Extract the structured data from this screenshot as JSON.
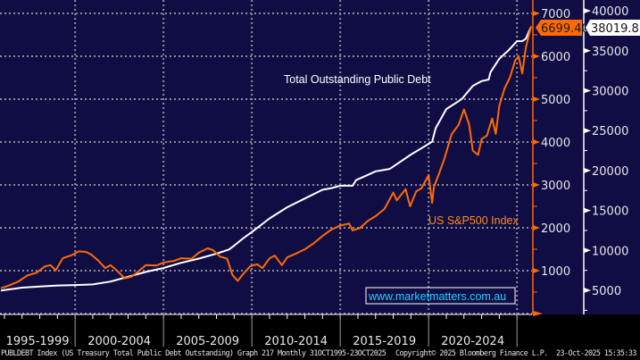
{
  "chart_data": {
    "type": "line",
    "title": "",
    "x_range": [
      "1995-10",
      "2025-10"
    ],
    "x_tick_labels": [
      "1995-1999",
      "2000-2004",
      "2005-2009",
      "2010-2014",
      "2015-2019",
      "2020-2024"
    ],
    "left_axis": {
      "series": "US S&P500 Index",
      "color": "#ff6a00",
      "ylim": [
        0,
        7000
      ],
      "ticks": [
        1000,
        2000,
        3000,
        4000,
        5000,
        6000,
        7000
      ],
      "last_value_label": "6699.40"
    },
    "right_axis": {
      "series": "Total Outstanding Public Debt",
      "color": "#ffffff",
      "ylim": [
        0,
        40000
      ],
      "ticks": [
        5000,
        10000,
        15000,
        20000,
        25000,
        30000,
        35000,
        40000
      ],
      "last_value_label": "38019.81"
    },
    "grid": true,
    "annotations": [
      {
        "text": "Total Outstanding Public Debt",
        "color": "#ffffff"
      },
      {
        "text": "US S&P500 Index",
        "color": "#ff8c1a"
      }
    ],
    "series": [
      {
        "name": "US S&P500 Index",
        "axis": "left",
        "x": [
          1995.8,
          1996.3,
          1996.8,
          1997.3,
          1997.8,
          1998.3,
          1998.6,
          1998.9,
          1999.3,
          1999.8,
          2000.2,
          2000.6,
          2000.9,
          2001.3,
          2001.7,
          2002.0,
          2002.5,
          2002.8,
          2003.2,
          2003.6,
          2004.0,
          2004.6,
          2005.0,
          2005.6,
          2006.0,
          2006.6,
          2007.0,
          2007.5,
          2007.8,
          2008.2,
          2008.6,
          2008.9,
          2009.2,
          2009.5,
          2009.9,
          2010.3,
          2010.6,
          2011.0,
          2011.3,
          2011.7,
          2012.0,
          2012.5,
          2013.0,
          2013.5,
          2014.0,
          2014.5,
          2015.0,
          2015.5,
          2015.7,
          2016.1,
          2016.6,
          2017.0,
          2017.5,
          2018.0,
          2018.2,
          2018.7,
          2018.95,
          2019.3,
          2019.6,
          2020.0,
          2020.2,
          2020.3,
          2020.6,
          2020.9,
          2021.3,
          2021.7,
          2022.0,
          2022.3,
          2022.5,
          2022.8,
          2023.0,
          2023.3,
          2023.6,
          2023.8,
          2024.0,
          2024.3,
          2024.6,
          2024.9,
          2025.1,
          2025.3,
          2025.5,
          2025.8
        ],
        "values": [
          590,
          660,
          750,
          890,
          950,
          1100,
          1130,
          1010,
          1290,
          1360,
          1450,
          1440,
          1380,
          1240,
          1060,
          1130,
          950,
          820,
          860,
          990,
          1130,
          1120,
          1190,
          1230,
          1290,
          1280,
          1420,
          1520,
          1480,
          1330,
          1280,
          900,
          760,
          920,
          1100,
          1150,
          1060,
          1290,
          1350,
          1130,
          1310,
          1400,
          1500,
          1640,
          1810,
          1960,
          2050,
          2100,
          1940,
          1990,
          2170,
          2270,
          2440,
          2820,
          2640,
          2900,
          2500,
          2850,
          2920,
          3230,
          2580,
          2950,
          3270,
          3620,
          4180,
          4400,
          4760,
          4400,
          3800,
          3700,
          4070,
          4150,
          4550,
          4190,
          4850,
          5250,
          5500,
          5900,
          6000,
          5600,
          6200,
          6699.4
        ]
      },
      {
        "name": "Total Outstanding Public Debt",
        "axis": "right",
        "x": [
          1995.8,
          1997.0,
          1998.0,
          1999.0,
          2000.0,
          2001.0,
          2002.0,
          2003.0,
          2004.0,
          2005.0,
          2006.0,
          2007.0,
          2008.0,
          2008.7,
          2009.0,
          2009.5,
          2010.0,
          2011.0,
          2012.0,
          2013.0,
          2014.0,
          2014.5,
          2015.0,
          2015.7,
          2015.9,
          2016.5,
          2017.0,
          2017.8,
          2018.0,
          2019.0,
          2019.9,
          2020.2,
          2020.4,
          2021.0,
          2021.5,
          2021.9,
          2022.5,
          2023.0,
          2023.4,
          2023.5,
          2024.0,
          2024.5,
          2025.0,
          2025.3,
          2025.5,
          2025.8
        ],
        "values": [
          4970,
          5330,
          5480,
          5600,
          5660,
          5740,
          6100,
          6700,
          7300,
          7800,
          8450,
          8970,
          9600,
          10100,
          10600,
          11500,
          12300,
          14000,
          15400,
          16500,
          17600,
          17800,
          18100,
          18100,
          18800,
          19400,
          19900,
          20200,
          20500,
          22000,
          23200,
          23600,
          25300,
          27700,
          28400,
          29000,
          30600,
          31200,
          31400,
          32300,
          34000,
          35000,
          36200,
          36200,
          36500,
          38019.81
        ]
      }
    ]
  },
  "watermark": "www.marketmatters.com.au",
  "footer": {
    "left": "PUBLDEBT Index (US Treasury Total Public Debt Outstanding) Graph 217 Monthly 31OCT1995-23OCT2025",
    "copyright": "Copyright© 2025 Bloomberg Finance L.P.",
    "timestamp": "23-Oct-2025 15:35:33"
  },
  "colors": {
    "plot_bg": "#100d45",
    "grid": "#8c8c9a",
    "sp500": "#ff6a00",
    "debt": "#ffffff",
    "watermark": "#19d3ff"
  }
}
